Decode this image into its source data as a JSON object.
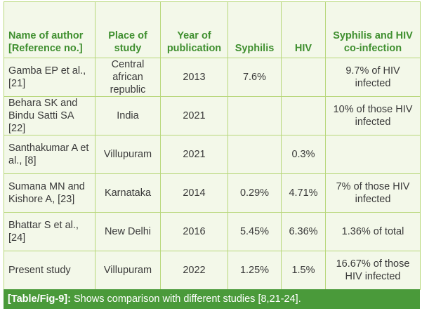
{
  "table": {
    "headers": {
      "author": "Name of author [Reference no.]",
      "place": "Place of study",
      "year": "Year of publication",
      "syphilis": "Syphilis",
      "hiv": "HIV",
      "coinfection": "Syphilis and HIV co-infection"
    },
    "rows": [
      {
        "author": "Gamba EP et al., [21]",
        "place": "Central african republic",
        "year": "2013",
        "syphilis": "7.6%",
        "hiv": "",
        "coinfection": "9.7% of HIV infected"
      },
      {
        "author": "Behara SK and Bindu Satti SA [22]",
        "place": "India",
        "year": "2021",
        "syphilis": "",
        "hiv": "",
        "coinfection": "10% of those HIV infected"
      },
      {
        "author": "Santhakumar A et al., [8]",
        "place": "Villupuram",
        "year": "2021",
        "syphilis": "",
        "hiv": "0.3%",
        "coinfection": ""
      },
      {
        "author": "Sumana MN and Kishore A, [23]",
        "place": "Karnataka",
        "year": "2014",
        "syphilis": "0.29%",
        "hiv": "4.71%",
        "coinfection": "7% of those HIV infected"
      },
      {
        "author": "Bhattar S et al., [24]",
        "place": "New Delhi",
        "year": "2016",
        "syphilis": "5.45%",
        "hiv": "6.36%",
        "coinfection": "1.36% of total"
      },
      {
        "author": "Present study",
        "place": "Villupuram",
        "year": "2022",
        "syphilis": "1.25%",
        "hiv": "1.5%",
        "coinfection": "16.67% of those HIV infected"
      }
    ]
  },
  "caption": {
    "label": "[Table/Fig-9]:",
    "text": " Shows comparison with different studies [8,21-24]."
  },
  "colors": {
    "header_text": "#3f8f2f",
    "border": "#b7d77a",
    "cell_background": "#f3f8e9",
    "caption_background": "#4a9a3a",
    "caption_text": "#ffffff",
    "body_text": "#3a3a3a"
  }
}
